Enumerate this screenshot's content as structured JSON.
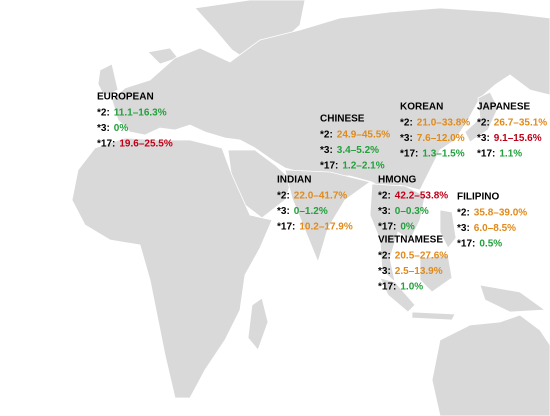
{
  "groups": [
    {
      "title": "EUROPEAN",
      "rows": [
        {
          "allele": "*2:",
          "range": "11.1–16.3%",
          "color": "#22a03c"
        },
        {
          "allele": "*3:",
          "range": "0%",
          "color": "#22a03c"
        },
        {
          "allele": "*17:",
          "range": "19.6–25.5%",
          "color": "#c00018"
        }
      ]
    },
    {
      "title": "CHINESE",
      "rows": [
        {
          "allele": "*2:",
          "range": "24.9–45.5%",
          "color": "#e08a1a"
        },
        {
          "allele": "*3:",
          "range": "3.4–5.2%",
          "color": "#22a03c"
        },
        {
          "allele": "*17:",
          "range": "1.2–2.1%",
          "color": "#22a03c"
        }
      ]
    },
    {
      "title": "KOREAN",
      "rows": [
        {
          "allele": "*2:",
          "range": "21.0–33.8%",
          "color": "#e08a1a"
        },
        {
          "allele": "*3:",
          "range": "7.6–12.0%",
          "color": "#e08a1a"
        },
        {
          "allele": "*17:",
          "range": "1.3–1.5%",
          "color": "#22a03c"
        }
      ]
    },
    {
      "title": "JAPANESE",
      "rows": [
        {
          "allele": "*2:",
          "range": "26.7–35.1%",
          "color": "#e08a1a"
        },
        {
          "allele": "*3:",
          "range": "9.1–15.6%",
          "color": "#c00018"
        },
        {
          "allele": "*17:",
          "range": "1.1%",
          "color": "#22a03c"
        }
      ]
    },
    {
      "title": "INDIAN",
      "rows": [
        {
          "allele": "*2:",
          "range": "22.0–41.7%",
          "color": "#e08a1a"
        },
        {
          "allele": "*3:",
          "range": "0–1.2%",
          "color": "#22a03c"
        },
        {
          "allele": "*17:",
          "range": "10.2–17.9%",
          "color": "#e08a1a"
        }
      ]
    },
    {
      "title": "HMONG",
      "rows": [
        {
          "allele": "*2:",
          "range": "42.2–53.8%",
          "color": "#c00018"
        },
        {
          "allele": "*3:",
          "range": "0–0.3%",
          "color": "#22a03c"
        },
        {
          "allele": "*17:",
          "range": "0%",
          "color": "#22a03c"
        }
      ]
    },
    {
      "title": "FILIPINO",
      "rows": [
        {
          "allele": "*2:",
          "range": "35.8–39.0%",
          "color": "#e08a1a"
        },
        {
          "allele": "*3:",
          "range": "6.0–8.5%",
          "color": "#e08a1a"
        },
        {
          "allele": "*17:",
          "range": "0.5%",
          "color": "#22a03c"
        }
      ]
    },
    {
      "title": "VIETNAMESE",
      "rows": [
        {
          "allele": "*2:",
          "range": "20.5–27.6%",
          "color": "#e08a1a"
        },
        {
          "allele": "*3:",
          "range": "2.5–13.9%",
          "color": "#e08a1a"
        },
        {
          "allele": "*17:",
          "range": "1.0%",
          "color": "#22a03c"
        }
      ]
    }
  ]
}
